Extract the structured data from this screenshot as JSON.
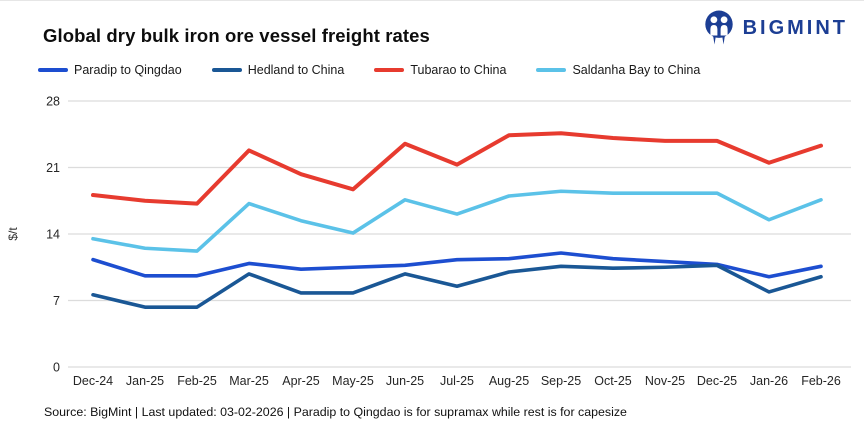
{
  "header": {
    "logo_text": "BIGMINT",
    "logo_color": "#1c3e94"
  },
  "chart_data": {
    "type": "line",
    "title": "Global dry bulk iron ore vessel freight rates",
    "xlabel": "",
    "ylabel": "$/t",
    "ylim": [
      0,
      28
    ],
    "yticks": [
      0,
      7,
      14,
      21,
      28
    ],
    "grid": "horizontal",
    "legend_position": "top",
    "categories": [
      "Dec-24",
      "Jan-25",
      "Feb-25",
      "Mar-25",
      "Apr-25",
      "May-25",
      "Jun-25",
      "Jul-25",
      "Aug-25",
      "Sep-25",
      "Oct-25",
      "Nov-25",
      "Dec-25",
      "Jan-26",
      "Feb-26"
    ],
    "series": [
      {
        "name": "Paradip to Qingdao",
        "color": "#1d4ed0",
        "values": [
          11.3,
          9.6,
          9.6,
          10.9,
          10.3,
          10.5,
          10.7,
          11.3,
          11.4,
          12.0,
          11.4,
          11.1,
          10.8,
          9.5,
          10.6
        ]
      },
      {
        "name": "Hedland to China",
        "color": "#1a5795",
        "values": [
          7.6,
          6.3,
          6.3,
          9.8,
          7.8,
          7.8,
          9.8,
          8.5,
          10.0,
          10.6,
          10.4,
          10.5,
          10.7,
          7.9,
          9.5
        ]
      },
      {
        "name": "Tubarao to China",
        "color": "#e73b2f",
        "values": [
          18.1,
          17.5,
          17.2,
          22.8,
          20.3,
          18.7,
          23.5,
          21.3,
          24.4,
          24.6,
          24.1,
          23.8,
          23.8,
          21.5,
          23.3
        ]
      },
      {
        "name": "Saldanha Bay to China",
        "color": "#5bc2e8",
        "values": [
          13.5,
          12.5,
          12.2,
          17.2,
          15.4,
          14.1,
          17.6,
          16.1,
          18.0,
          18.5,
          18.3,
          18.3,
          18.3,
          15.5,
          17.6
        ]
      }
    ]
  },
  "footer": {
    "text": "Source: BigMint | Last updated: 03-02-2026 | Paradip to Qingdao is for supramax while rest is for capesize"
  }
}
